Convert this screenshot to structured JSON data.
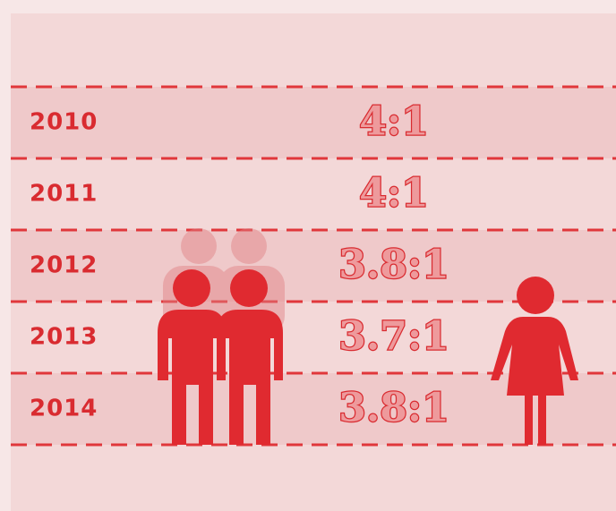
{
  "rows": [
    {
      "year": "2010",
      "ratio": "4:1"
    },
    {
      "year": "2011",
      "ratio": "4:1"
    },
    {
      "year": "2012",
      "ratio": "3.8:1"
    },
    {
      "year": "2013",
      "ratio": "3.7:1"
    },
    {
      "year": "2014",
      "ratio": "3.8:1"
    }
  ]
}
